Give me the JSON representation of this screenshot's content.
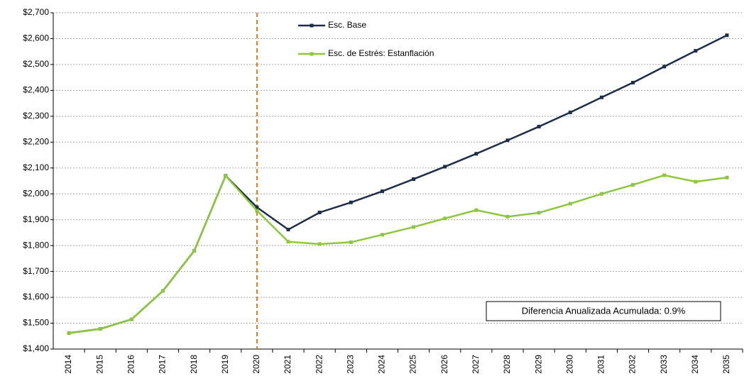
{
  "chart_data": {
    "type": "line",
    "categories": [
      "2014",
      "2015",
      "2016",
      "2017",
      "2018",
      "2019",
      "2020",
      "2021",
      "2022",
      "2023",
      "2024",
      "2025",
      "2026",
      "2027",
      "2028",
      "2029",
      "2030",
      "2031",
      "2032",
      "2033",
      "2034",
      "2035"
    ],
    "series": [
      {
        "name": "Esc. Base",
        "color": "#1f2d4a",
        "marker": "square",
        "values": [
          1462,
          1478,
          1515,
          1625,
          1780,
          2070,
          1948,
          1862,
          1928,
          1967,
          2010,
          2057,
          2105,
          2155,
          2207,
          2260,
          2315,
          2373,
          2430,
          2492,
          2553,
          2613
        ]
      },
      {
        "name": "Esc. de Estrés: Estanflación",
        "color": "#8dc63f",
        "marker": "square",
        "values": [
          1462,
          1478,
          1515,
          1625,
          1780,
          2070,
          1935,
          1815,
          1806,
          1813,
          1842,
          1872,
          1905,
          1937,
          1912,
          1927,
          1962,
          2000,
          2035,
          2072,
          2047,
          2063
        ]
      }
    ],
    "ylim": [
      1400,
      2700
    ],
    "yticks": [
      {
        "value": 1400,
        "label": "$1,400"
      },
      {
        "value": 1500,
        "label": "$1,500"
      },
      {
        "value": 1600,
        "label": "$1,600"
      },
      {
        "value": 1700,
        "label": "$1,700"
      },
      {
        "value": 1800,
        "label": "$1,800"
      },
      {
        "value": 1900,
        "label": "$1,900"
      },
      {
        "value": 2000,
        "label": "$2,000"
      },
      {
        "value": 2100,
        "label": "$2,100"
      },
      {
        "value": 2200,
        "label": "$2,200"
      },
      {
        "value": 2300,
        "label": "$2,300"
      },
      {
        "value": 2400,
        "label": "$2,400"
      },
      {
        "value": 2500,
        "label": "$2,500"
      },
      {
        "value": 2600,
        "label": "$2,600"
      },
      {
        "value": 2700,
        "label": "$2,700"
      }
    ],
    "grid": true,
    "reference_line": {
      "category": "2020",
      "color": "#e87722"
    },
    "annotation": "Diferencia Anualizada Acumulada: 0.9%"
  }
}
